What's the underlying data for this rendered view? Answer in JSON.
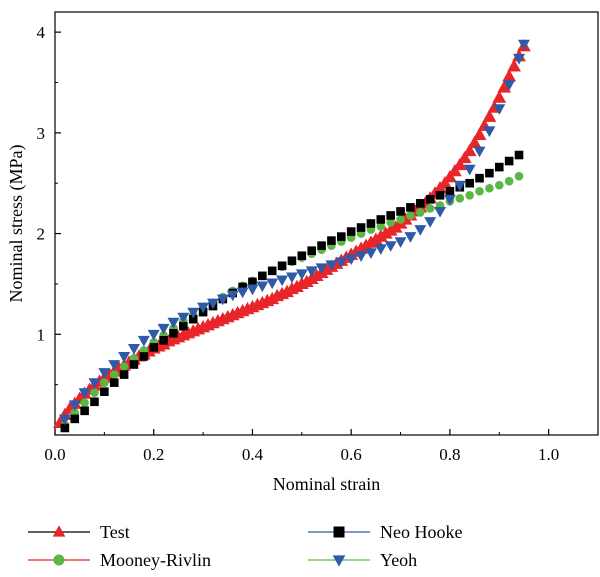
{
  "chart_data": {
    "type": "scatter",
    "xlabel": "Nominal strain",
    "ylabel": "Nominal stress (MPa)",
    "xlim": [
      0.0,
      1.1
    ],
    "ylim": [
      0.0,
      4.2
    ],
    "xticks": [
      0.0,
      0.2,
      0.4,
      0.6,
      0.8,
      1.0
    ],
    "xtick_labels": [
      "0.0",
      "0.2",
      "0.4",
      "0.6",
      "0.8",
      "1.0"
    ],
    "yticks": [
      1,
      2,
      3,
      4
    ],
    "ytick_labels": [
      "1",
      "2",
      "3",
      "4"
    ],
    "grid": false,
    "legend_position": "below",
    "series": [
      {
        "name": "Test",
        "marker": "triangle-up",
        "color": "#e8262a",
        "line_color": "#000000",
        "x": [
          0.01,
          0.02,
          0.03,
          0.04,
          0.05,
          0.06,
          0.07,
          0.08,
          0.09,
          0.1,
          0.11,
          0.12,
          0.13,
          0.14,
          0.15,
          0.16,
          0.17,
          0.18,
          0.19,
          0.2,
          0.21,
          0.22,
          0.23,
          0.24,
          0.25,
          0.26,
          0.27,
          0.28,
          0.29,
          0.3,
          0.31,
          0.32,
          0.33,
          0.34,
          0.35,
          0.36,
          0.37,
          0.38,
          0.39,
          0.4,
          0.41,
          0.42,
          0.43,
          0.44,
          0.45,
          0.46,
          0.47,
          0.48,
          0.49,
          0.5,
          0.51,
          0.52,
          0.53,
          0.54,
          0.55,
          0.56,
          0.57,
          0.58,
          0.59,
          0.6,
          0.61,
          0.62,
          0.63,
          0.64,
          0.65,
          0.66,
          0.67,
          0.68,
          0.69,
          0.7,
          0.71,
          0.72,
          0.73,
          0.74,
          0.75,
          0.76,
          0.77,
          0.78,
          0.79,
          0.8,
          0.81,
          0.82,
          0.83,
          0.84,
          0.85,
          0.86,
          0.87,
          0.88,
          0.89,
          0.9,
          0.91,
          0.92,
          0.93,
          0.94,
          0.95
        ],
        "y": [
          0.12,
          0.2,
          0.26,
          0.31,
          0.36,
          0.41,
          0.45,
          0.49,
          0.53,
          0.57,
          0.6,
          0.63,
          0.66,
          0.69,
          0.72,
          0.75,
          0.78,
          0.8,
          0.83,
          0.86,
          0.88,
          0.9,
          0.93,
          0.95,
          0.97,
          0.99,
          1.01,
          1.03,
          1.05,
          1.07,
          1.09,
          1.11,
          1.13,
          1.15,
          1.17,
          1.19,
          1.21,
          1.23,
          1.25,
          1.27,
          1.29,
          1.31,
          1.33,
          1.35,
          1.38,
          1.4,
          1.42,
          1.45,
          1.47,
          1.5,
          1.52,
          1.55,
          1.58,
          1.61,
          1.64,
          1.67,
          1.7,
          1.73,
          1.76,
          1.79,
          1.82,
          1.85,
          1.88,
          1.91,
          1.94,
          1.97,
          2.0,
          2.03,
          2.06,
          2.1,
          2.14,
          2.18,
          2.22,
          2.26,
          2.3,
          2.35,
          2.4,
          2.45,
          2.5,
          2.56,
          2.62,
          2.68,
          2.75,
          2.82,
          2.9,
          2.98,
          3.07,
          3.16,
          3.25,
          3.35,
          3.45,
          3.56,
          3.66,
          3.76,
          3.86
        ]
      },
      {
        "name": "Mooney-Rivlin",
        "marker": "circle",
        "color": "#5cb646",
        "line_color": "#e8262a",
        "x": [
          0.02,
          0.04,
          0.06,
          0.08,
          0.1,
          0.12,
          0.14,
          0.16,
          0.18,
          0.2,
          0.22,
          0.24,
          0.26,
          0.28,
          0.3,
          0.32,
          0.34,
          0.36,
          0.38,
          0.4,
          0.42,
          0.44,
          0.46,
          0.48,
          0.5,
          0.52,
          0.54,
          0.56,
          0.58,
          0.6,
          0.62,
          0.64,
          0.66,
          0.68,
          0.7,
          0.72,
          0.74,
          0.76,
          0.78,
          0.8,
          0.82,
          0.84,
          0.86,
          0.88,
          0.9,
          0.92,
          0.94
        ],
        "y": [
          0.1,
          0.22,
          0.32,
          0.42,
          0.52,
          0.6,
          0.68,
          0.76,
          0.84,
          0.92,
          0.99,
          1.06,
          1.13,
          1.19,
          1.25,
          1.31,
          1.37,
          1.43,
          1.48,
          1.53,
          1.58,
          1.63,
          1.67,
          1.72,
          1.76,
          1.8,
          1.84,
          1.88,
          1.92,
          1.96,
          2.0,
          2.04,
          2.07,
          2.11,
          2.14,
          2.18,
          2.21,
          2.25,
          2.28,
          2.32,
          2.35,
          2.38,
          2.42,
          2.45,
          2.48,
          2.52,
          2.57
        ]
      },
      {
        "name": "Neo Hooke",
        "marker": "square",
        "color": "#000000",
        "line_color": "#2e5aa8",
        "x": [
          0.02,
          0.04,
          0.06,
          0.08,
          0.1,
          0.12,
          0.14,
          0.16,
          0.18,
          0.2,
          0.22,
          0.24,
          0.26,
          0.28,
          0.3,
          0.32,
          0.34,
          0.36,
          0.38,
          0.4,
          0.42,
          0.44,
          0.46,
          0.48,
          0.5,
          0.52,
          0.54,
          0.56,
          0.58,
          0.6,
          0.62,
          0.64,
          0.66,
          0.68,
          0.7,
          0.72,
          0.74,
          0.76,
          0.78,
          0.8,
          0.82,
          0.84,
          0.86,
          0.88,
          0.9,
          0.92,
          0.94
        ],
        "y": [
          0.07,
          0.16,
          0.24,
          0.33,
          0.43,
          0.52,
          0.6,
          0.7,
          0.78,
          0.87,
          0.94,
          1.01,
          1.08,
          1.15,
          1.22,
          1.28,
          1.35,
          1.41,
          1.47,
          1.52,
          1.58,
          1.63,
          1.68,
          1.73,
          1.78,
          1.83,
          1.88,
          1.93,
          1.97,
          2.02,
          2.06,
          2.1,
          2.14,
          2.18,
          2.22,
          2.26,
          2.3,
          2.34,
          2.38,
          2.42,
          2.46,
          2.5,
          2.55,
          2.6,
          2.66,
          2.72,
          2.78
        ]
      },
      {
        "name": "Yeoh",
        "marker": "triangle-down",
        "color": "#2e5aa8",
        "line_color": "#5cb646",
        "x": [
          0.02,
          0.04,
          0.06,
          0.08,
          0.1,
          0.12,
          0.14,
          0.16,
          0.18,
          0.2,
          0.22,
          0.24,
          0.26,
          0.28,
          0.3,
          0.32,
          0.34,
          0.36,
          0.38,
          0.4,
          0.42,
          0.44,
          0.46,
          0.48,
          0.5,
          0.52,
          0.54,
          0.56,
          0.58,
          0.6,
          0.62,
          0.64,
          0.66,
          0.68,
          0.7,
          0.72,
          0.74,
          0.76,
          0.78,
          0.8,
          0.82,
          0.84,
          0.86,
          0.88,
          0.9,
          0.92,
          0.94,
          0.95
        ],
        "y": [
          0.16,
          0.3,
          0.42,
          0.52,
          0.62,
          0.7,
          0.78,
          0.86,
          0.94,
          1.0,
          1.06,
          1.12,
          1.17,
          1.22,
          1.27,
          1.31,
          1.35,
          1.39,
          1.42,
          1.45,
          1.48,
          1.51,
          1.54,
          1.57,
          1.6,
          1.63,
          1.66,
          1.69,
          1.72,
          1.75,
          1.78,
          1.81,
          1.85,
          1.88,
          1.92,
          1.97,
          2.04,
          2.12,
          2.22,
          2.34,
          2.48,
          2.64,
          2.82,
          3.02,
          3.24,
          3.48,
          3.74,
          3.88
        ]
      }
    ]
  }
}
